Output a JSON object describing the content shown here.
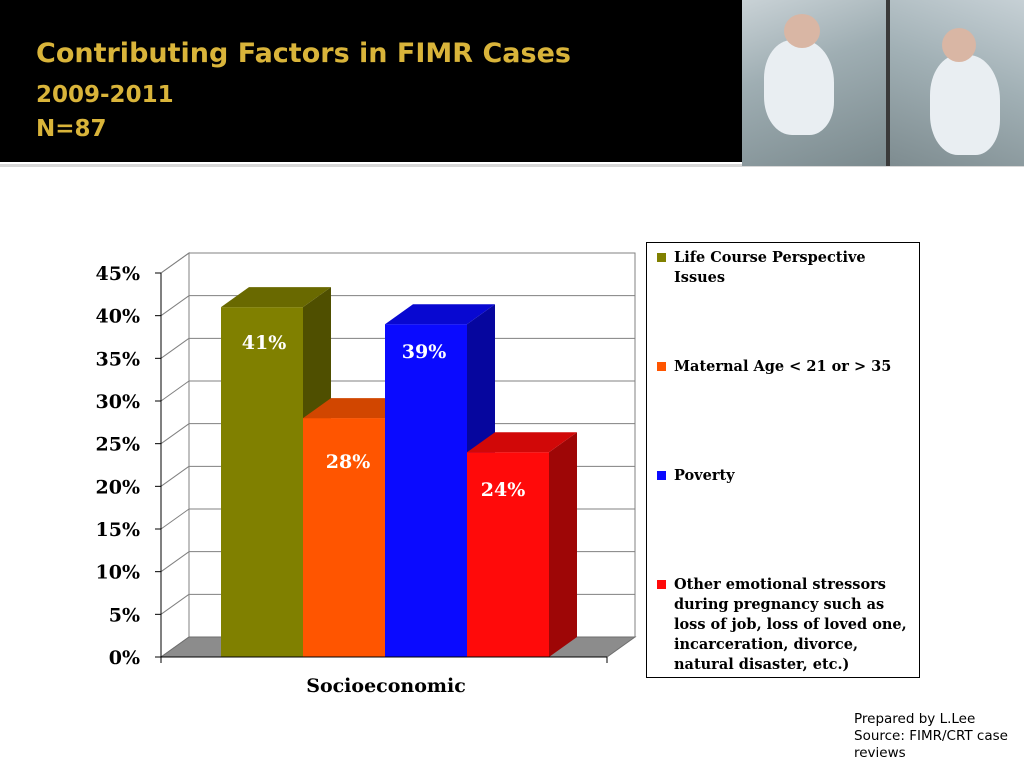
{
  "slide": {
    "title_line1": "Contributing Factors in FIMR Cases",
    "title_line2": "2009-2011",
    "title_line3": "N=87",
    "footer_line1": "Prepared by L.Lee",
    "footer_line2": "Source: FIMR/CRT case reviews",
    "accent_color": "#d9b43a"
  },
  "chart_data": {
    "type": "bar",
    "categories": [
      "Socioeconomic"
    ],
    "series": [
      {
        "name": "Life Course Perspective Issues",
        "values": [
          41
        ],
        "label": "41%",
        "color": "#808000"
      },
      {
        "name": "Maternal Age < 21 or > 35",
        "values": [
          28
        ],
        "label": "28%",
        "color": "#ff5500"
      },
      {
        "name": "Poverty",
        "values": [
          39
        ],
        "label": "39%",
        "color": "#0a0aff"
      },
      {
        "name": "Other emotional stressors during pregnancy such as loss of job, loss of loved one, incarceration, divorce, natural disaster, etc.)",
        "values": [
          24
        ],
        "label": "24%",
        "color": "#ff0a0a"
      }
    ],
    "ylim": [
      0,
      45
    ],
    "yticks": [
      "0%",
      "5%",
      "10%",
      "15%",
      "20%",
      "25%",
      "30%",
      "35%",
      "40%",
      "45%"
    ],
    "grid": true,
    "legend": "right",
    "style": "3d-clustered-column"
  }
}
